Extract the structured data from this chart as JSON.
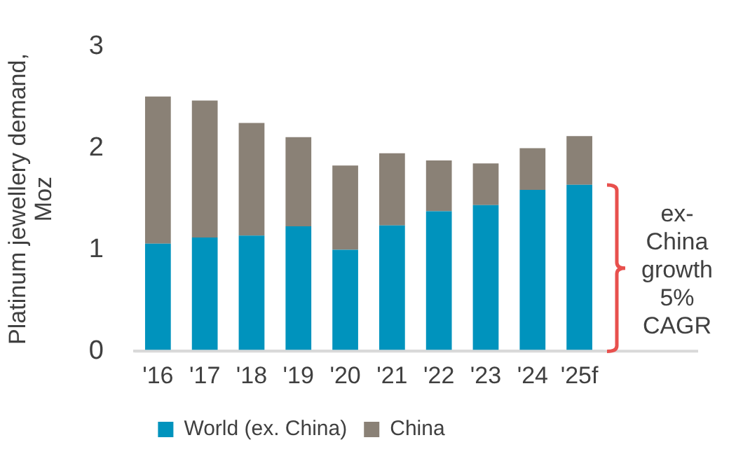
{
  "chart_data": {
    "type": "bar",
    "stacked": true,
    "ylabel": "Platinum jewellery demand, Moz",
    "categories": [
      "'16",
      "'17",
      "'18",
      "'19",
      "'20",
      "'21",
      "'22",
      "'23",
      "'24",
      "'25f"
    ],
    "series": [
      {
        "name": "World (ex. China)",
        "color": "#0093bd",
        "values": [
          1.06,
          1.12,
          1.14,
          1.23,
          1.0,
          1.24,
          1.38,
          1.44,
          1.59,
          1.64
        ]
      },
      {
        "name": "China",
        "color": "#8a8176",
        "values": [
          1.45,
          1.35,
          1.11,
          0.88,
          0.83,
          0.71,
          0.5,
          0.41,
          0.41,
          0.48
        ]
      }
    ],
    "ylim": [
      0,
      3
    ],
    "yticks": [
      0,
      1,
      2,
      3
    ],
    "grid": false,
    "legend": "bottom",
    "annotations": [
      "ex-China growth 5% CAGR"
    ]
  }
}
